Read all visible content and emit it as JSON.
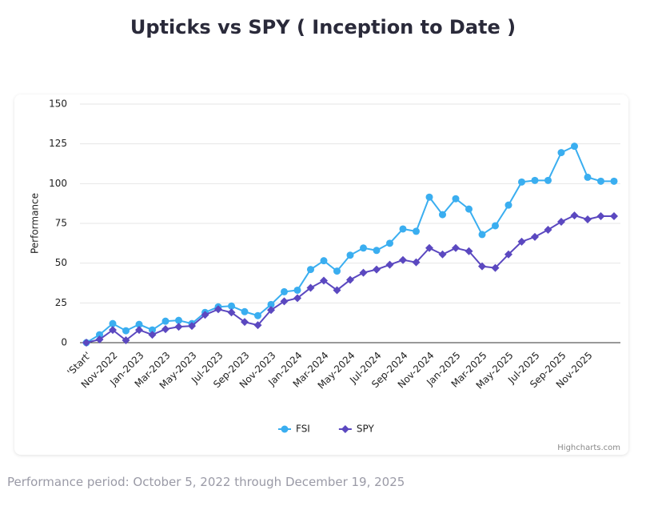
{
  "chart_data": {
    "type": "line",
    "title": "Upticks vs SPY ( Inception to Date )",
    "y_label": "Performance",
    "categories": [
      "'Start'",
      null,
      "Nov-2022",
      null,
      "Jan-2023",
      null,
      "Mar-2023",
      null,
      "May-2023",
      null,
      "Jul-2023",
      null,
      "Sep-2023",
      null,
      "Nov-2023",
      null,
      "Jan-2024",
      null,
      "Mar-2024",
      null,
      "May-2024",
      null,
      "Jul-2024",
      null,
      "Sep-2024",
      null,
      "Nov-2024",
      null,
      "Jan-2025",
      null,
      "Mar-2025",
      null,
      "May-2025",
      null,
      "Jul-2025",
      null,
      "Sep-2025",
      null,
      "Nov-2025",
      null,
      null
    ],
    "series": [
      {
        "name": "FSI",
        "color": "#3aaef0",
        "marker": "circle",
        "values": [
          0,
          5,
          12,
          7.5,
          11.5,
          8,
          13.5,
          14,
          12,
          19,
          22.5,
          23,
          19.5,
          17,
          24,
          32,
          33,
          46,
          51.5,
          45,
          55,
          59.5,
          58,
          62.5,
          71.5,
          70,
          91.5,
          80.5,
          90.5,
          84,
          68,
          73.5,
          86.5,
          101,
          102,
          102,
          119.5,
          123.5,
          104,
          101.5,
          101.5
        ]
      },
      {
        "name": "SPY",
        "color": "#5b48c0",
        "marker": "diamond",
        "values": [
          0,
          2,
          8,
          1.5,
          8,
          5,
          8.5,
          10,
          10.5,
          17.5,
          21,
          19,
          13,
          11,
          20.5,
          26,
          28,
          34.5,
          39,
          33,
          39.5,
          44,
          46,
          49,
          52,
          50.5,
          59.5,
          55.5,
          59.5,
          57.5,
          48,
          47,
          55.5,
          63.5,
          66.5,
          71,
          76,
          80,
          77.5,
          79.5,
          79.5
        ]
      }
    ],
    "ylim": [
      0,
      150
    ],
    "yticks": [
      0,
      25,
      50,
      75,
      100,
      125,
      150
    ],
    "grid": true,
    "credits": "Highcharts.com"
  },
  "footer": "Performance period: October 5, 2022 through December 19, 2025"
}
